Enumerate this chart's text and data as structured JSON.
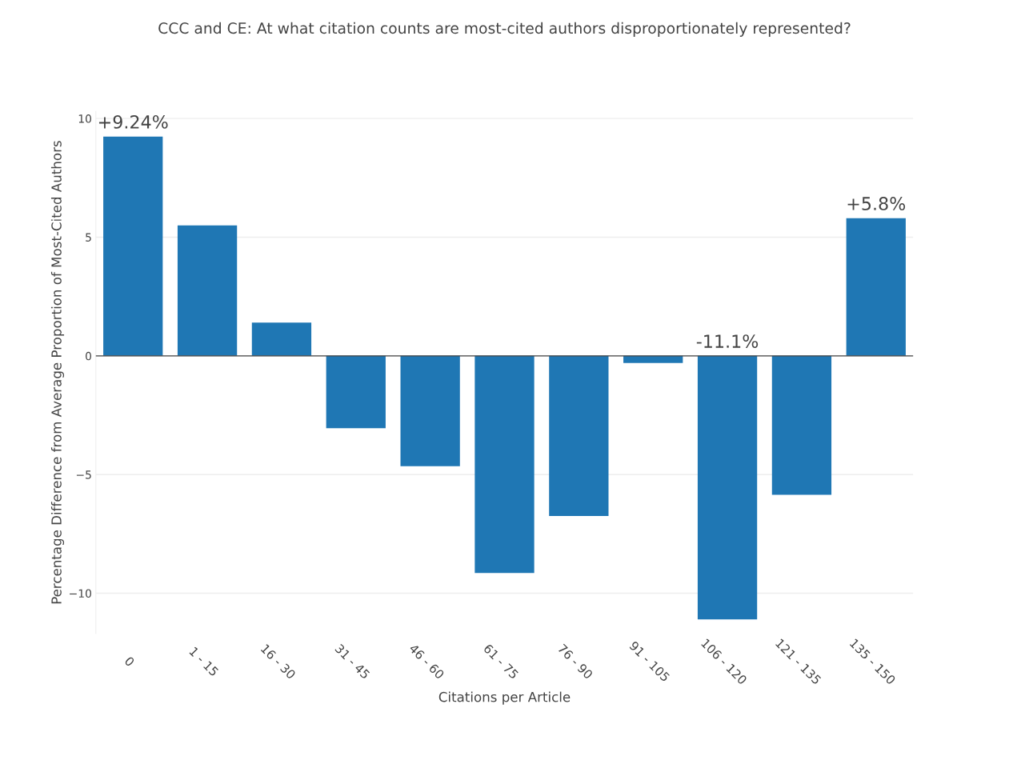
{
  "chart_data": {
    "type": "bar",
    "title": "CCC and CE: At what citation counts are most-cited authors disproportionately represented?",
    "xlabel": "Citations per Article",
    "ylabel": "Percentage Difference from Average Proportion of Most-Cited Authors",
    "categories": [
      "0",
      "1 - 15",
      "16 - 30",
      "31 - 45",
      "46 - 60",
      "61 - 75",
      "76 - 90",
      "91 - 105",
      "106 - 120",
      "121 - 135",
      "135 - 150"
    ],
    "values": [
      9.24,
      5.5,
      1.4,
      -3.05,
      -4.65,
      -9.15,
      -6.75,
      -0.3,
      -11.1,
      -5.85,
      5.8
    ],
    "value_labels": [
      "+9.24%",
      null,
      null,
      null,
      null,
      null,
      null,
      null,
      "-11.1%",
      null,
      "+5.8%"
    ],
    "color": "#1f77b4",
    "ylim": [
      -11.7,
      10.3
    ],
    "yticks": [
      {
        "value": -10,
        "label": "−10"
      },
      {
        "value": -5,
        "label": "−5"
      },
      0,
      5,
      10
    ],
    "ref_lines": [
      {
        "axis": "y",
        "value": 0,
        "color": "#444444"
      }
    ],
    "grid": "y",
    "legend": false
  }
}
